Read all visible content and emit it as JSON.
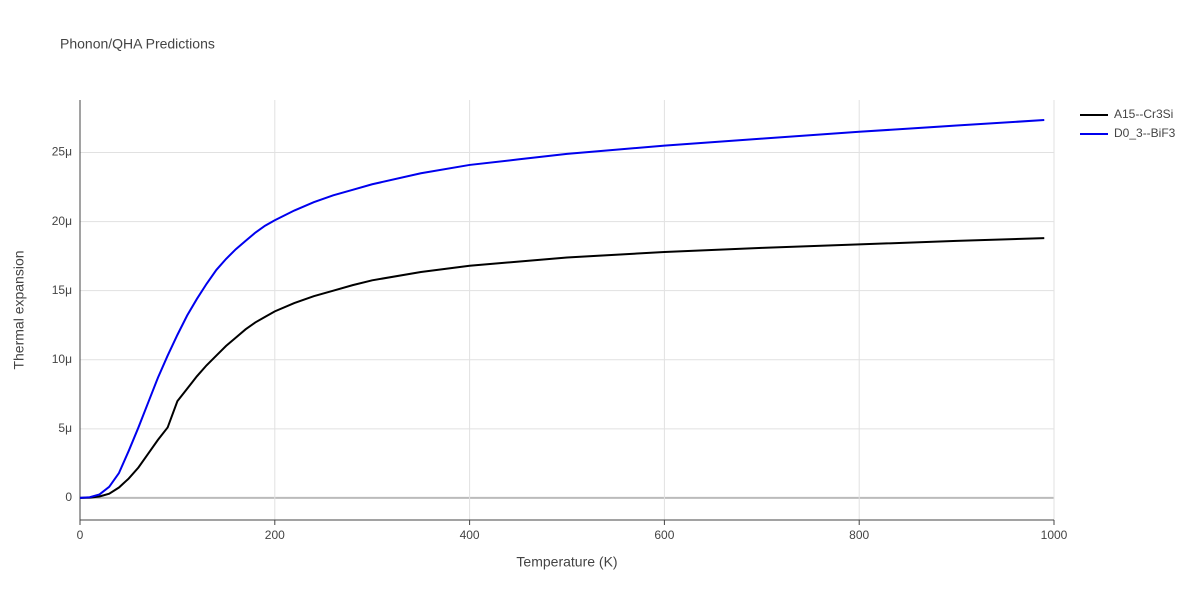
{
  "chart_data": {
    "type": "line",
    "title": "Phonon/QHA Predictions",
    "x_label": "Temperature (K)",
    "y_label": "Thermal expansion",
    "x": [
      0,
      10,
      20,
      30,
      40,
      50,
      60,
      70,
      80,
      90,
      100,
      110,
      120,
      130,
      140,
      150,
      160,
      170,
      180,
      190,
      200,
      220,
      240,
      260,
      280,
      300,
      350,
      400,
      450,
      500,
      600,
      700,
      800,
      900,
      990
    ],
    "series": [
      {
        "name": "A15--Cr3Si",
        "color": "#000000",
        "values": [
          0,
          2e-08,
          1e-07,
          3e-07,
          7.5e-07,
          1.4e-06,
          2.2e-06,
          3.2e-06,
          4.2e-06,
          5.1e-06,
          7e-06,
          7.9e-06,
          8.8e-06,
          9.6e-06,
          1.03e-05,
          1.1e-05,
          1.16e-05,
          1.22e-05,
          1.27e-05,
          1.31e-05,
          1.35e-05,
          1.41e-05,
          1.46e-05,
          1.5e-05,
          1.54e-05,
          1.575e-05,
          1.635e-05,
          1.68e-05,
          1.71e-05,
          1.74e-05,
          1.78e-05,
          1.81e-05,
          1.835e-05,
          1.86e-05,
          1.88e-05
        ]
      },
      {
        "name": "D0_3--BiF3",
        "color": "#0000ee",
        "values": [
          0,
          5e-08,
          2.5e-07,
          8e-07,
          1.8e-06,
          3.4e-06,
          5.1e-06,
          6.9e-06,
          8.7e-06,
          1.03e-05,
          1.18e-05,
          1.32e-05,
          1.44e-05,
          1.55e-05,
          1.65e-05,
          1.73e-05,
          1.8e-05,
          1.86e-05,
          1.92e-05,
          1.97e-05,
          2.01e-05,
          2.08e-05,
          2.14e-05,
          2.19e-05,
          2.23e-05,
          2.27e-05,
          2.35e-05,
          2.41e-05,
          2.45e-05,
          2.49e-05,
          2.55e-05,
          2.6e-05,
          2.65e-05,
          2.695e-05,
          2.735e-05
        ]
      }
    ],
    "xlim": [
      0,
      1000
    ],
    "xticks": [
      0,
      200,
      400,
      600,
      800,
      1000
    ],
    "ylim": [
      -1.6e-06,
      2.88e-05
    ],
    "yticks": [
      0,
      {
        "value": 5e-06,
        "label": "5μ"
      },
      {
        "value": 1e-05,
        "label": "10μ"
      },
      {
        "value": 1.5e-05,
        "label": "15μ"
      },
      {
        "value": 2e-05,
        "label": "20μ"
      },
      {
        "value": 2.5e-05,
        "label": "25μ"
      }
    ],
    "grid": true
  }
}
